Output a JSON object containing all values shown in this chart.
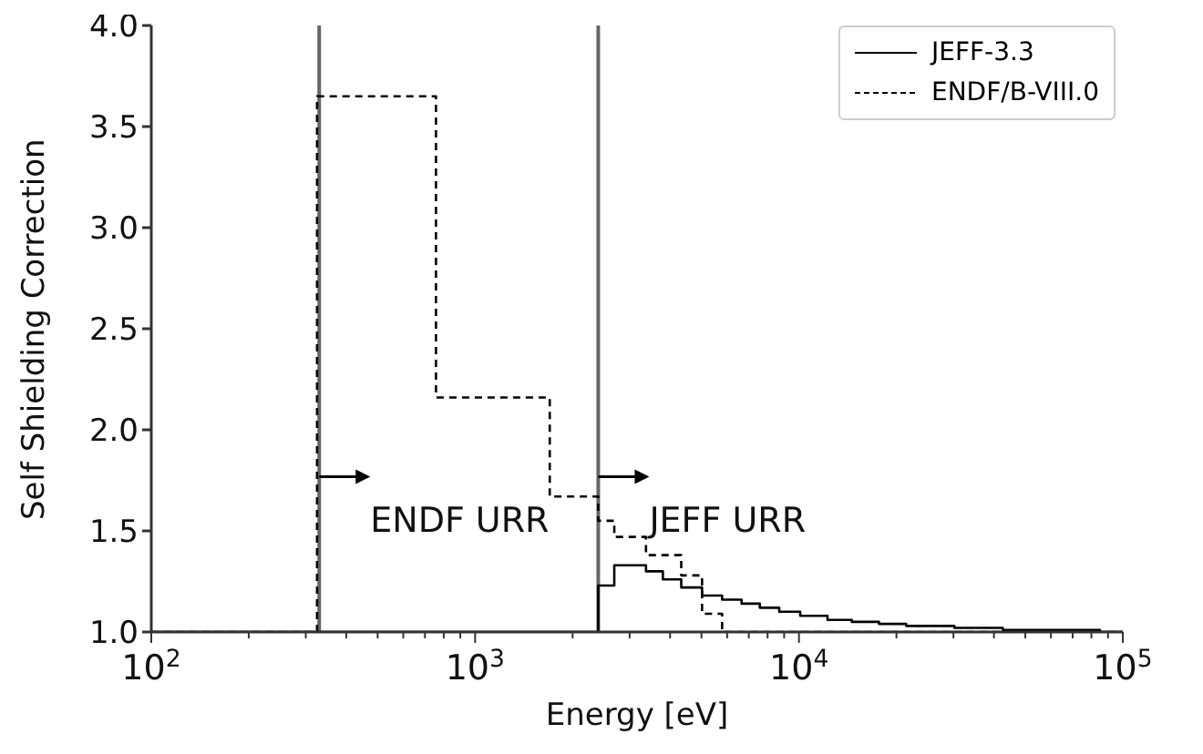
{
  "chart_data": {
    "type": "step",
    "xlabel": "Energy [eV]",
    "ylabel": "Self Shielding Correction",
    "log": "x",
    "xlim": [
      100,
      100000
    ],
    "ylim": [
      1.0,
      4.0
    ],
    "xticks": [
      {
        "value": 100,
        "label": "10$^{2}$"
      },
      {
        "value": 200,
        "label": null
      },
      {
        "value": 300,
        "label": null
      },
      {
        "value": 400,
        "label": null
      },
      {
        "value": 500,
        "label": null
      },
      {
        "value": 600,
        "label": null
      },
      {
        "value": 700,
        "label": null
      },
      {
        "value": 800,
        "label": null
      },
      {
        "value": 900,
        "label": null
      },
      {
        "value": 1000,
        "label": "10$^{3}$"
      },
      {
        "value": 2000,
        "label": null
      },
      {
        "value": 3000,
        "label": null
      },
      {
        "value": 4000,
        "label": null
      },
      {
        "value": 5000,
        "label": null
      },
      {
        "value": 6000,
        "label": null
      },
      {
        "value": 7000,
        "label": null
      },
      {
        "value": 8000,
        "label": null
      },
      {
        "value": 9000,
        "label": null
      },
      {
        "value": 10000,
        "label": "10$^{4}$"
      },
      {
        "value": 20000,
        "label": null
      },
      {
        "value": 30000,
        "label": null
      },
      {
        "value": 40000,
        "label": null
      },
      {
        "value": 50000,
        "label": null
      },
      {
        "value": 60000,
        "label": null
      },
      {
        "value": 70000,
        "label": null
      },
      {
        "value": 80000,
        "label": null
      },
      {
        "value": 90000,
        "label": null
      },
      {
        "value": 100000,
        "label": "10$^{5}$"
      }
    ],
    "yticks": [
      {
        "value": 1,
        "label": "1.0"
      },
      {
        "value": 1.5,
        "label": "1.5"
      },
      {
        "value": 2,
        "label": "2.0"
      },
      {
        "value": 2.5,
        "label": "2.5"
      },
      {
        "value": 3,
        "label": "3.0"
      },
      {
        "value": 3.5,
        "label": "3.5"
      },
      {
        "value": 4,
        "label": "4.0"
      }
    ],
    "legend": "top right",
    "series": [
      {
        "name": "JEFF-3.3",
        "color": "#000000",
        "line_style": "solid",
        "x": [
          100,
          2400,
          2690,
          3370,
          3800,
          4330,
          5020,
          5790,
          6650,
          7570,
          8690,
          10090,
          12250,
          14560,
          17660,
          21430,
          30200,
          42600,
          57500,
          85000,
          100000
        ],
        "values": [
          1.0,
          1.23,
          1.33,
          1.3,
          1.26,
          1.22,
          1.18,
          1.16,
          1.14,
          1.12,
          1.1,
          1.08,
          1.06,
          1.05,
          1.04,
          1.03,
          1.02,
          1.01,
          1.01,
          1.0,
          1.0
        ]
      },
      {
        "name": "ENDF/B-VIII.0",
        "color": "#000000",
        "line_style": "dashed",
        "x": [
          100,
          325,
          757,
          1700,
          2400,
          2690,
          3370,
          4330,
          5020,
          5790,
          100000
        ],
        "values": [
          1.0,
          3.65,
          2.16,
          1.67,
          1.55,
          1.47,
          1.38,
          1.28,
          1.09,
          1.0,
          1.0
        ]
      }
    ],
    "ref_lines": [
      {
        "axis": "x",
        "value": 330,
        "label": null,
        "color": "#666666"
      },
      {
        "axis": "x",
        "value": 2400,
        "label": null,
        "color": "#666666"
      }
    ],
    "annotations": [
      {
        "text": "ENDF URR",
        "x": 330,
        "y": 1.6
      },
      {
        "text": "JEFF URR",
        "x": 2400,
        "y": 1.6
      }
    ]
  }
}
